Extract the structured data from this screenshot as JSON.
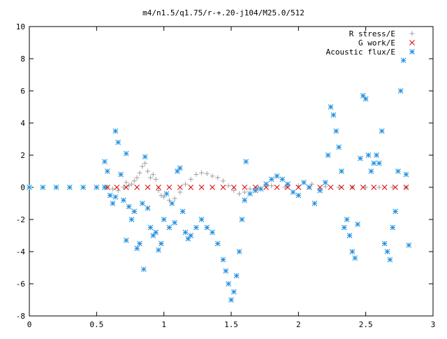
{
  "chart_data": {
    "type": "scatter",
    "title": "m4/n1.5/q1.75/r-+.20-j104/M25.0/512",
    "xlabel": "",
    "ylabel": "",
    "xlim": [
      0,
      3
    ],
    "ylim": [
      -8,
      10
    ],
    "grid": false,
    "legend_position": "top-right",
    "x_ticks": [
      0,
      0.5,
      1,
      1.5,
      2,
      2.5,
      3
    ],
    "x_tick_labels": [
      "0",
      "0.5",
      "1",
      "1.5",
      "2",
      "2.5",
      "3"
    ],
    "y_ticks": [
      -8,
      -6,
      -4,
      -2,
      0,
      2,
      4,
      6,
      8,
      10
    ],
    "y_tick_labels": [
      "-8",
      "-6",
      "-4",
      "-2",
      "0",
      "2",
      "4",
      "6",
      "8",
      "10"
    ],
    "series": [
      {
        "name": "R stress/E",
        "marker": "plus",
        "color": "#a0a0a0",
        "points": [
          [
            0.58,
            0
          ],
          [
            0.62,
            -0.1
          ],
          [
            0.66,
            -0.2
          ],
          [
            0.7,
            0.0
          ],
          [
            0.72,
            0.3
          ],
          [
            0.74,
            0.1
          ],
          [
            0.76,
            0.2
          ],
          [
            0.78,
            0.4
          ],
          [
            0.8,
            0.6
          ],
          [
            0.82,
            0.9
          ],
          [
            0.84,
            1.3
          ],
          [
            0.86,
            1.5
          ],
          [
            0.88,
            1.0
          ],
          [
            0.9,
            0.6
          ],
          [
            0.92,
            0.8
          ],
          [
            0.94,
            0.5
          ],
          [
            0.96,
            -0.2
          ],
          [
            0.98,
            -0.5
          ],
          [
            1.0,
            -0.6
          ],
          [
            1.04,
            -0.8
          ],
          [
            1.08,
            -0.7
          ],
          [
            1.12,
            -0.3
          ],
          [
            1.16,
            0.2
          ],
          [
            1.2,
            0.5
          ],
          [
            1.24,
            0.8
          ],
          [
            1.28,
            0.9
          ],
          [
            1.32,
            0.85
          ],
          [
            1.36,
            0.7
          ],
          [
            1.4,
            0.6
          ],
          [
            1.44,
            0.4
          ],
          [
            1.48,
            0.1
          ],
          [
            1.52,
            -0.2
          ],
          [
            1.56,
            -0.4
          ],
          [
            1.6,
            -0.3
          ],
          [
            1.64,
            -0.1
          ],
          [
            1.7,
            0.0
          ],
          [
            1.8,
            0.1
          ],
          [
            1.9,
            0.0
          ],
          [
            2.0,
            0.1
          ],
          [
            2.1,
            0.2
          ],
          [
            2.2,
            0.05
          ],
          [
            2.3,
            0.0
          ],
          [
            2.4,
            0.0
          ],
          [
            2.5,
            0.0
          ],
          [
            2.6,
            0.0
          ],
          [
            2.7,
            0.0
          ],
          [
            2.8,
            0.0
          ]
        ]
      },
      {
        "name": "G work/E",
        "marker": "cross",
        "color": "#e00000",
        "points": [
          [
            0.58,
            0
          ],
          [
            0.65,
            0
          ],
          [
            0.72,
            0
          ],
          [
            0.8,
            0
          ],
          [
            0.88,
            0
          ],
          [
            0.96,
            0
          ],
          [
            1.04,
            0
          ],
          [
            1.12,
            0
          ],
          [
            1.2,
            0
          ],
          [
            1.28,
            0
          ],
          [
            1.36,
            0
          ],
          [
            1.44,
            0
          ],
          [
            1.52,
            0
          ],
          [
            1.6,
            0
          ],
          [
            1.68,
            0
          ],
          [
            1.76,
            0
          ],
          [
            1.84,
            0
          ],
          [
            1.92,
            0
          ],
          [
            2.0,
            0
          ],
          [
            2.08,
            0
          ],
          [
            2.16,
            0
          ],
          [
            2.24,
            0
          ],
          [
            2.32,
            0
          ],
          [
            2.4,
            0
          ],
          [
            2.48,
            0
          ],
          [
            2.56,
            0
          ],
          [
            2.64,
            0
          ],
          [
            2.72,
            0
          ],
          [
            2.8,
            0
          ]
        ]
      },
      {
        "name": "Acoustic flux/E",
        "marker": "star",
        "color": "#1e8fe0",
        "points": [
          [
            0.0,
            0
          ],
          [
            0.1,
            0
          ],
          [
            0.2,
            0
          ],
          [
            0.3,
            0
          ],
          [
            0.4,
            0
          ],
          [
            0.5,
            0
          ],
          [
            0.56,
            0
          ],
          [
            0.56,
            1.6
          ],
          [
            0.58,
            1.0
          ],
          [
            0.6,
            -0.5
          ],
          [
            0.62,
            -1.0
          ],
          [
            0.64,
            -0.6
          ],
          [
            0.64,
            3.5
          ],
          [
            0.66,
            2.8
          ],
          [
            0.68,
            0.8
          ],
          [
            0.7,
            -0.8
          ],
          [
            0.72,
            -3.3
          ],
          [
            0.72,
            2.1
          ],
          [
            0.74,
            -1.2
          ],
          [
            0.76,
            -2.0
          ],
          [
            0.78,
            -1.5
          ],
          [
            0.8,
            -3.8
          ],
          [
            0.82,
            -3.5
          ],
          [
            0.84,
            -1.0
          ],
          [
            0.85,
            -5.1
          ],
          [
            0.86,
            1.9
          ],
          [
            0.88,
            -1.3
          ],
          [
            0.9,
            -2.5
          ],
          [
            0.92,
            -3.0
          ],
          [
            0.94,
            -2.8
          ],
          [
            0.96,
            -3.9
          ],
          [
            0.98,
            -3.5
          ],
          [
            1.0,
            -2.0
          ],
          [
            1.02,
            -0.4
          ],
          [
            1.04,
            -2.5
          ],
          [
            1.06,
            -1.0
          ],
          [
            1.08,
            -2.2
          ],
          [
            1.1,
            1.0
          ],
          [
            1.12,
            1.2
          ],
          [
            1.14,
            -1.5
          ],
          [
            1.16,
            -2.8
          ],
          [
            1.18,
            -3.2
          ],
          [
            1.2,
            -3.0
          ],
          [
            1.24,
            -2.5
          ],
          [
            1.28,
            -2.0
          ],
          [
            1.32,
            -2.5
          ],
          [
            1.36,
            -2.8
          ],
          [
            1.4,
            -3.5
          ],
          [
            1.44,
            -4.5
          ],
          [
            1.46,
            -5.2
          ],
          [
            1.48,
            -6.0
          ],
          [
            1.5,
            -7.0
          ],
          [
            1.52,
            -6.5
          ],
          [
            1.54,
            -5.5
          ],
          [
            1.56,
            -4.0
          ],
          [
            1.58,
            -2.0
          ],
          [
            1.6,
            -0.8
          ],
          [
            1.61,
            1.6
          ],
          [
            1.64,
            -0.4
          ],
          [
            1.68,
            -0.2
          ],
          [
            1.72,
            -0.1
          ],
          [
            1.76,
            0.2
          ],
          [
            1.8,
            0.5
          ],
          [
            1.84,
            0.7
          ],
          [
            1.88,
            0.5
          ],
          [
            1.92,
            0.2
          ],
          [
            1.96,
            -0.3
          ],
          [
            2.0,
            -0.5
          ],
          [
            2.04,
            0.3
          ],
          [
            2.08,
            0.0
          ],
          [
            2.12,
            -1.0
          ],
          [
            2.16,
            -0.2
          ],
          [
            2.2,
            0.3
          ],
          [
            2.22,
            2.0
          ],
          [
            2.24,
            5.0
          ],
          [
            2.26,
            4.5
          ],
          [
            2.28,
            3.5
          ],
          [
            2.3,
            2.5
          ],
          [
            2.32,
            1.0
          ],
          [
            2.34,
            -2.5
          ],
          [
            2.36,
            -2.0
          ],
          [
            2.38,
            -3.0
          ],
          [
            2.4,
            -4.0
          ],
          [
            2.42,
            -4.4
          ],
          [
            2.44,
            -2.3
          ],
          [
            2.46,
            1.8
          ],
          [
            2.48,
            5.7
          ],
          [
            2.5,
            5.5
          ],
          [
            2.52,
            2.0
          ],
          [
            2.54,
            1.0
          ],
          [
            2.56,
            1.5
          ],
          [
            2.58,
            2.0
          ],
          [
            2.6,
            1.5
          ],
          [
            2.62,
            3.5
          ],
          [
            2.64,
            -3.5
          ],
          [
            2.66,
            -4.0
          ],
          [
            2.68,
            -4.5
          ],
          [
            2.7,
            -2.5
          ],
          [
            2.72,
            -1.5
          ],
          [
            2.74,
            1.0
          ],
          [
            2.76,
            6.0
          ],
          [
            2.78,
            7.9
          ],
          [
            2.8,
            0.8
          ],
          [
            2.82,
            -3.6
          ]
        ]
      }
    ]
  }
}
